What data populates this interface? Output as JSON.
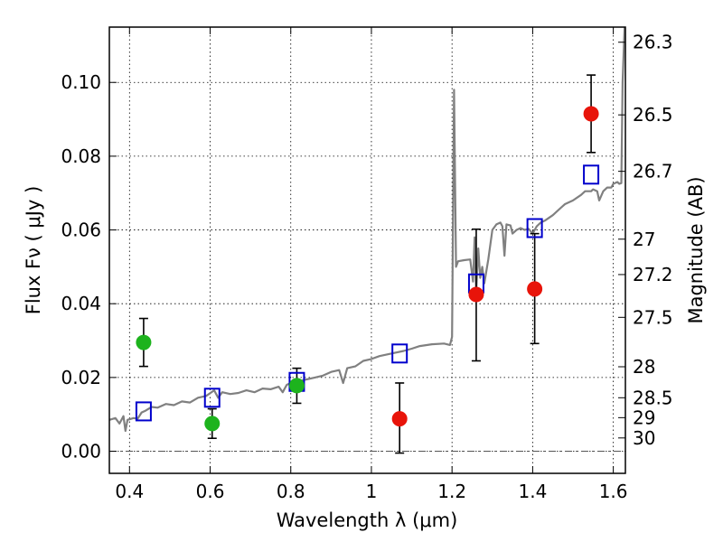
{
  "chart_data": {
    "type": "scatter",
    "xlabel": "Wavelength  λ (μm)",
    "ylabel": "Flux  Fν  ( μJy )",
    "y2label": "Magnitude (AB)",
    "xlim": [
      0.35,
      1.63
    ],
    "ylim": [
      -0.006,
      0.115
    ],
    "grid": true,
    "xticks": [
      {
        "value": 0.4,
        "label": "0.4"
      },
      {
        "value": 0.6,
        "label": "0.6"
      },
      {
        "value": 0.8,
        "label": "0.8"
      },
      {
        "value": 1.0,
        "label": "1"
      },
      {
        "value": 1.2,
        "label": "1.2"
      },
      {
        "value": 1.4,
        "label": "1.4"
      },
      {
        "value": 1.6,
        "label": "1.6"
      }
    ],
    "yticks": [
      {
        "value": 0.0,
        "label": "0.00"
      },
      {
        "value": 0.02,
        "label": "0.02"
      },
      {
        "value": 0.04,
        "label": "0.04"
      },
      {
        "value": 0.06,
        "label": "0.06"
      },
      {
        "value": 0.08,
        "label": "0.08"
      },
      {
        "value": 0.1,
        "label": "0.10"
      }
    ],
    "mag_ticks": [
      {
        "label": "26.3",
        "flux": 0.1109
      },
      {
        "label": "26.5",
        "flux": 0.0912
      },
      {
        "label": "26.7",
        "flux": 0.0759
      },
      {
        "label": "27",
        "flux": 0.0575
      },
      {
        "label": "27.2",
        "flux": 0.0479
      },
      {
        "label": "27.5",
        "flux": 0.0363
      },
      {
        "label": "28",
        "flux": 0.0229
      },
      {
        "label": "28.5",
        "flux": 0.0145
      },
      {
        "label": "29",
        "flux": 0.0091
      },
      {
        "label": "30",
        "flux": 0.0036
      }
    ],
    "zero_line": {
      "value": 0.0,
      "color": "#555555"
    },
    "colors": {
      "spectrum": "#808080",
      "model": "#0000cc",
      "green": "#1db31d",
      "red": "#e8140a",
      "errorbar": "#000000"
    },
    "spectrum": [
      [
        0.35,
        0.0085
      ],
      [
        0.365,
        0.009
      ],
      [
        0.375,
        0.0075
      ],
      [
        0.385,
        0.0095
      ],
      [
        0.39,
        0.0055
      ],
      [
        0.395,
        0.0085
      ],
      [
        0.41,
        0.009
      ],
      [
        0.42,
        0.0088
      ],
      [
        0.43,
        0.0105
      ],
      [
        0.44,
        0.011
      ],
      [
        0.455,
        0.012
      ],
      [
        0.47,
        0.0118
      ],
      [
        0.49,
        0.0128
      ],
      [
        0.51,
        0.0125
      ],
      [
        0.53,
        0.0135
      ],
      [
        0.55,
        0.0132
      ],
      [
        0.57,
        0.0145
      ],
      [
        0.59,
        0.015
      ],
      [
        0.61,
        0.0165
      ],
      [
        0.62,
        0.0145
      ],
      [
        0.63,
        0.016
      ],
      [
        0.65,
        0.0155
      ],
      [
        0.67,
        0.0158
      ],
      [
        0.69,
        0.0165
      ],
      [
        0.71,
        0.016
      ],
      [
        0.73,
        0.017
      ],
      [
        0.75,
        0.0168
      ],
      [
        0.77,
        0.0175
      ],
      [
        0.78,
        0.016
      ],
      [
        0.79,
        0.018
      ],
      [
        0.8,
        0.0185
      ],
      [
        0.82,
        0.019
      ],
      [
        0.84,
        0.0195
      ],
      [
        0.86,
        0.02
      ],
      [
        0.88,
        0.0205
      ],
      [
        0.9,
        0.0215
      ],
      [
        0.92,
        0.022
      ],
      [
        0.93,
        0.0185
      ],
      [
        0.94,
        0.0225
      ],
      [
        0.96,
        0.023
      ],
      [
        0.98,
        0.0245
      ],
      [
        1.0,
        0.025
      ],
      [
        1.02,
        0.0258
      ],
      [
        1.05,
        0.0265
      ],
      [
        1.08,
        0.0272
      ],
      [
        1.1,
        0.0278
      ],
      [
        1.12,
        0.0285
      ],
      [
        1.15,
        0.029
      ],
      [
        1.18,
        0.0292
      ],
      [
        1.195,
        0.0288
      ],
      [
        1.2,
        0.031
      ],
      [
        1.205,
        0.098
      ],
      [
        1.21,
        0.05
      ],
      [
        1.215,
        0.0515
      ],
      [
        1.23,
        0.0518
      ],
      [
        1.245,
        0.052
      ],
      [
        1.252,
        0.046
      ],
      [
        1.256,
        0.058
      ],
      [
        1.26,
        0.043
      ],
      [
        1.265,
        0.055
      ],
      [
        1.27,
        0.047
      ],
      [
        1.275,
        0.05
      ],
      [
        1.28,
        0.0455
      ],
      [
        1.29,
        0.052
      ],
      [
        1.3,
        0.06
      ],
      [
        1.31,
        0.0615
      ],
      [
        1.32,
        0.062
      ],
      [
        1.325,
        0.061
      ],
      [
        1.33,
        0.053
      ],
      [
        1.335,
        0.0615
      ],
      [
        1.345,
        0.0612
      ],
      [
        1.35,
        0.059
      ],
      [
        1.36,
        0.06
      ],
      [
        1.37,
        0.0605
      ],
      [
        1.38,
        0.06
      ],
      [
        1.39,
        0.0603
      ],
      [
        1.4,
        0.059
      ],
      [
        1.41,
        0.061
      ],
      [
        1.42,
        0.062
      ],
      [
        1.43,
        0.0625
      ],
      [
        1.45,
        0.064
      ],
      [
        1.47,
        0.066
      ],
      [
        1.48,
        0.067
      ],
      [
        1.5,
        0.068
      ],
      [
        1.52,
        0.0695
      ],
      [
        1.53,
        0.0705
      ],
      [
        1.545,
        0.0705
      ],
      [
        1.55,
        0.071
      ],
      [
        1.56,
        0.0705
      ],
      [
        1.565,
        0.068
      ],
      [
        1.575,
        0.0705
      ],
      [
        1.585,
        0.0715
      ],
      [
        1.595,
        0.0715
      ],
      [
        1.6,
        0.0725
      ],
      [
        1.61,
        0.073
      ],
      [
        1.615,
        0.0725
      ],
      [
        1.62,
        0.0727
      ],
      [
        1.623,
        0.1
      ],
      [
        1.628,
        0.115
      ]
    ],
    "model_points": [
      {
        "x": 0.435,
        "y": 0.0108
      },
      {
        "x": 0.605,
        "y": 0.0145
      },
      {
        "x": 0.815,
        "y": 0.0188
      },
      {
        "x": 1.07,
        "y": 0.0265
      },
      {
        "x": 1.26,
        "y": 0.0455
      },
      {
        "x": 1.405,
        "y": 0.0605
      },
      {
        "x": 1.545,
        "y": 0.075
      }
    ],
    "green_points": [
      {
        "x": 0.435,
        "y": 0.0295,
        "ylo": 0.023,
        "yhi": 0.036
      },
      {
        "x": 0.605,
        "y": 0.0075,
        "ylo": 0.0035,
        "yhi": 0.0115
      },
      {
        "x": 0.815,
        "y": 0.0178,
        "ylo": 0.013,
        "yhi": 0.0225
      }
    ],
    "red_points": [
      {
        "x": 1.07,
        "y": 0.0088,
        "ylo": -0.0005,
        "yhi": 0.0185
      },
      {
        "x": 1.26,
        "y": 0.0425,
        "ylo": 0.0245,
        "yhi": 0.0602
      },
      {
        "x": 1.405,
        "y": 0.044,
        "ylo": 0.0292,
        "yhi": 0.059
      },
      {
        "x": 1.545,
        "y": 0.0915,
        "ylo": 0.081,
        "yhi": 0.102
      }
    ]
  }
}
